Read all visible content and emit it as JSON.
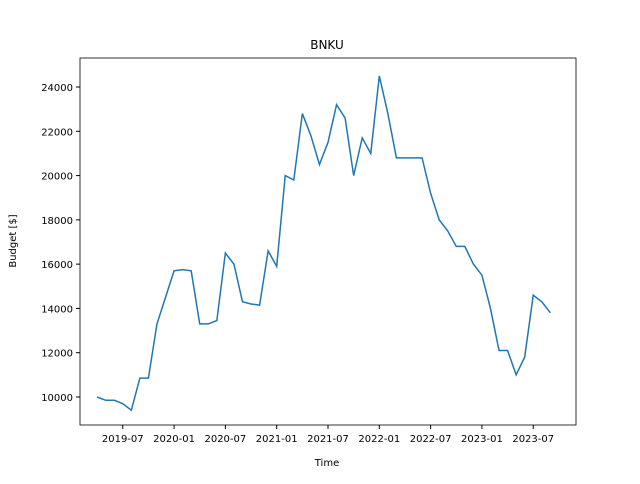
{
  "chart_data": {
    "type": "line",
    "title": "BNKU",
    "x_label": "Time",
    "y_label": "Budget [$]",
    "x": [
      "2019-04",
      "2019-05",
      "2019-06",
      "2019-07",
      "2019-08",
      "2019-09",
      "2019-10",
      "2019-11",
      "2019-12",
      "2020-01",
      "2020-02",
      "2020-03",
      "2020-04",
      "2020-05",
      "2020-06",
      "2020-07",
      "2020-08",
      "2020-09",
      "2020-10",
      "2020-11",
      "2020-12",
      "2021-01",
      "2021-02",
      "2021-03",
      "2021-04",
      "2021-05",
      "2021-06",
      "2021-07",
      "2021-08",
      "2021-09",
      "2021-10",
      "2021-11",
      "2021-12",
      "2022-01",
      "2022-02",
      "2022-03",
      "2022-04",
      "2022-05",
      "2022-06",
      "2022-07",
      "2022-08",
      "2022-09",
      "2022-10",
      "2022-11",
      "2022-12",
      "2023-01",
      "2023-02",
      "2023-03",
      "2023-04",
      "2023-05",
      "2023-06",
      "2023-07",
      "2023-08",
      "2023-09"
    ],
    "series": [
      {
        "name": "BNKU",
        "color": "#1f77b4",
        "values": [
          10000,
          9850,
          9850,
          9700,
          9400,
          10850,
          10850,
          13300,
          14500,
          15700,
          15750,
          15700,
          13300,
          13300,
          13450,
          16500,
          16000,
          14300,
          14200,
          14150,
          16600,
          15900,
          20000,
          19800,
          22800,
          21800,
          20500,
          21500,
          23200,
          22600,
          20000,
          21700,
          21000,
          24500,
          22800,
          20800,
          20800,
          20800,
          20800,
          19200,
          18000,
          17500,
          16800,
          16800,
          16000,
          15500,
          14000,
          12100,
          12100,
          11000,
          11800,
          14600,
          14300,
          13800
        ]
      }
    ],
    "xlim": [
      "2019-02",
      "2023-12"
    ],
    "xticks": [
      "2019-07",
      "2020-01",
      "2020-07",
      "2021-01",
      "2021-07",
      "2022-01",
      "2022-07",
      "2023-01",
      "2023-07"
    ],
    "ylim": [
      8735,
      25310
    ],
    "yticks": [
      10000,
      12000,
      14000,
      16000,
      18000,
      20000,
      22000,
      24000
    ],
    "grid": false
  }
}
